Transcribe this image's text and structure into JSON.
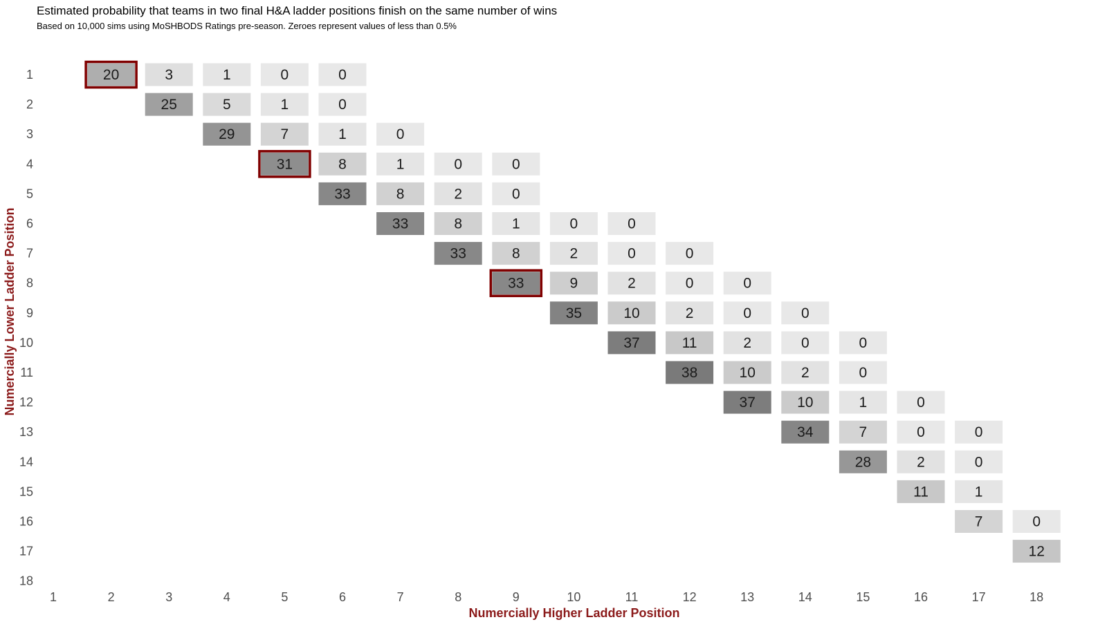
{
  "title": "Estimated probability that teams in two final H&A ladder positions finish on the same number of wins",
  "subtitle": "Based on 10,000 sims using MoSHBODS Ratings pre-season. Zeroes represent values of less than 0.5%",
  "colors": {
    "axis_title": "#8b1a1a",
    "highlight_border": "#800000",
    "cell_low": "#e8e8e8",
    "cell_high": "#7a7a7a"
  },
  "chart_data": {
    "type": "heatmap",
    "xlabel": "Numercially Higher Ladder Position",
    "ylabel": "Numercially Lower Ladder Position",
    "x_ticks": [
      "1",
      "2",
      "3",
      "4",
      "5",
      "6",
      "7",
      "8",
      "9",
      "10",
      "11",
      "12",
      "13",
      "14",
      "15",
      "16",
      "17",
      "18"
    ],
    "y_ticks": [
      "1",
      "2",
      "3",
      "4",
      "5",
      "6",
      "7",
      "8",
      "9",
      "10",
      "11",
      "12",
      "13",
      "14",
      "15",
      "16",
      "17",
      "18"
    ],
    "value_range": [
      0,
      38
    ],
    "cells": [
      {
        "x": 2,
        "y": 1,
        "value": 20,
        "highlight": true
      },
      {
        "x": 3,
        "y": 1,
        "value": 3
      },
      {
        "x": 4,
        "y": 1,
        "value": 1
      },
      {
        "x": 5,
        "y": 1,
        "value": 0
      },
      {
        "x": 6,
        "y": 1,
        "value": 0
      },
      {
        "x": 3,
        "y": 2,
        "value": 25
      },
      {
        "x": 4,
        "y": 2,
        "value": 5
      },
      {
        "x": 5,
        "y": 2,
        "value": 1
      },
      {
        "x": 6,
        "y": 2,
        "value": 0
      },
      {
        "x": 4,
        "y": 3,
        "value": 29
      },
      {
        "x": 5,
        "y": 3,
        "value": 7
      },
      {
        "x": 6,
        "y": 3,
        "value": 1
      },
      {
        "x": 7,
        "y": 3,
        "value": 0
      },
      {
        "x": 5,
        "y": 4,
        "value": 31,
        "highlight": true
      },
      {
        "x": 6,
        "y": 4,
        "value": 8
      },
      {
        "x": 7,
        "y": 4,
        "value": 1
      },
      {
        "x": 8,
        "y": 4,
        "value": 0
      },
      {
        "x": 9,
        "y": 4,
        "value": 0
      },
      {
        "x": 6,
        "y": 5,
        "value": 33
      },
      {
        "x": 7,
        "y": 5,
        "value": 8
      },
      {
        "x": 8,
        "y": 5,
        "value": 2
      },
      {
        "x": 9,
        "y": 5,
        "value": 0
      },
      {
        "x": 7,
        "y": 6,
        "value": 33
      },
      {
        "x": 8,
        "y": 6,
        "value": 8
      },
      {
        "x": 9,
        "y": 6,
        "value": 1
      },
      {
        "x": 10,
        "y": 6,
        "value": 0
      },
      {
        "x": 11,
        "y": 6,
        "value": 0
      },
      {
        "x": 8,
        "y": 7,
        "value": 33
      },
      {
        "x": 9,
        "y": 7,
        "value": 8
      },
      {
        "x": 10,
        "y": 7,
        "value": 2
      },
      {
        "x": 11,
        "y": 7,
        "value": 0
      },
      {
        "x": 12,
        "y": 7,
        "value": 0
      },
      {
        "x": 9,
        "y": 8,
        "value": 33,
        "highlight": true
      },
      {
        "x": 10,
        "y": 8,
        "value": 9
      },
      {
        "x": 11,
        "y": 8,
        "value": 2
      },
      {
        "x": 12,
        "y": 8,
        "value": 0
      },
      {
        "x": 13,
        "y": 8,
        "value": 0
      },
      {
        "x": 10,
        "y": 9,
        "value": 35
      },
      {
        "x": 11,
        "y": 9,
        "value": 10
      },
      {
        "x": 12,
        "y": 9,
        "value": 2
      },
      {
        "x": 13,
        "y": 9,
        "value": 0
      },
      {
        "x": 14,
        "y": 9,
        "value": 0
      },
      {
        "x": 11,
        "y": 10,
        "value": 37
      },
      {
        "x": 12,
        "y": 10,
        "value": 11
      },
      {
        "x": 13,
        "y": 10,
        "value": 2
      },
      {
        "x": 14,
        "y": 10,
        "value": 0
      },
      {
        "x": 15,
        "y": 10,
        "value": 0
      },
      {
        "x": 12,
        "y": 11,
        "value": 38
      },
      {
        "x": 13,
        "y": 11,
        "value": 10
      },
      {
        "x": 14,
        "y": 11,
        "value": 2
      },
      {
        "x": 15,
        "y": 11,
        "value": 0
      },
      {
        "x": 13,
        "y": 12,
        "value": 37
      },
      {
        "x": 14,
        "y": 12,
        "value": 10
      },
      {
        "x": 15,
        "y": 12,
        "value": 1
      },
      {
        "x": 16,
        "y": 12,
        "value": 0
      },
      {
        "x": 14,
        "y": 13,
        "value": 34
      },
      {
        "x": 15,
        "y": 13,
        "value": 7
      },
      {
        "x": 16,
        "y": 13,
        "value": 0
      },
      {
        "x": 17,
        "y": 13,
        "value": 0
      },
      {
        "x": 15,
        "y": 14,
        "value": 28
      },
      {
        "x": 16,
        "y": 14,
        "value": 2
      },
      {
        "x": 17,
        "y": 14,
        "value": 0
      },
      {
        "x": 16,
        "y": 15,
        "value": 11
      },
      {
        "x": 17,
        "y": 15,
        "value": 1
      },
      {
        "x": 17,
        "y": 16,
        "value": 7
      },
      {
        "x": 18,
        "y": 16,
        "value": 0
      },
      {
        "x": 18,
        "y": 17,
        "value": 12
      }
    ]
  }
}
